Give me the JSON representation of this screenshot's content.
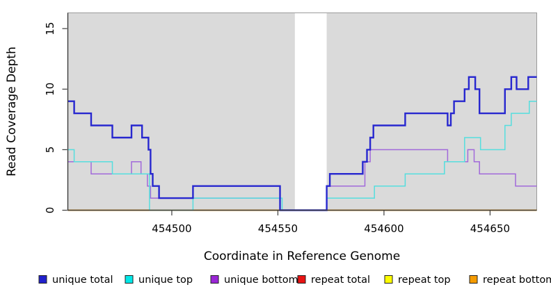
{
  "chart_data": {
    "type": "line",
    "subtype": "step-after-coverage",
    "title": "",
    "xlabel": "Coordinate in Reference Genome",
    "ylabel": "Read Coverage Depth",
    "xlim": [
      454451,
      454672
    ],
    "ylim": [
      0,
      16.3
    ],
    "x_ticks": [
      454500,
      454550,
      454600,
      454650
    ],
    "y_ticks": [
      0,
      5,
      10,
      15
    ],
    "grid": false,
    "legend_position": "bottom",
    "panel_bg": "#dadada",
    "masked_region": {
      "x_start": 454558,
      "x_end": 454573,
      "color": "#ffffff"
    },
    "series": [
      {
        "name": "repeat total",
        "color": "#e81313",
        "width": 1.6,
        "steps": [
          [
            454451,
            0
          ],
          [
            454551,
            null
          ],
          [
            454573,
            0
          ]
        ]
      },
      {
        "name": "repeat top",
        "color": "#f5f500",
        "width": 1.6,
        "steps": [
          [
            454451,
            0
          ],
          [
            454551,
            null
          ],
          [
            454573,
            0
          ]
        ]
      },
      {
        "name": "repeat bottom",
        "color": "#ff9d00",
        "width": 2,
        "steps": [
          [
            454451,
            0
          ],
          [
            454551,
            null
          ],
          [
            454573,
            0
          ]
        ]
      },
      {
        "name": "unique bottom",
        "color": "#a169da",
        "width": 1.5,
        "steps": [
          [
            454451,
            4
          ],
          [
            454462,
            3
          ],
          [
            454481,
            4
          ],
          [
            454485.5,
            3
          ],
          [
            454488.5,
            2
          ],
          [
            454490,
            1
          ],
          [
            454551,
            0
          ],
          [
            454573,
            2
          ],
          [
            454591,
            4
          ],
          [
            454593.5,
            5
          ],
          [
            454630,
            4
          ],
          [
            454639.5,
            5
          ],
          [
            454642.5,
            4
          ],
          [
            454645,
            3
          ],
          [
            454662,
            2
          ]
        ]
      },
      {
        "name": "unique top",
        "color": "#55dede",
        "width": 1.5,
        "steps": [
          [
            454451,
            5
          ],
          [
            454454,
            4
          ],
          [
            454472,
            3
          ],
          [
            454489.5,
            0
          ],
          [
            454510,
            1
          ],
          [
            454552,
            0
          ],
          [
            454573,
            1
          ],
          [
            454595.5,
            2
          ],
          [
            454610,
            3
          ],
          [
            454628.5,
            4
          ],
          [
            454638,
            6
          ],
          [
            454645.5,
            5
          ],
          [
            454657,
            7
          ],
          [
            454660,
            8
          ],
          [
            454668.5,
            9
          ]
        ]
      },
      {
        "name": "unique total",
        "color": "#2727cf",
        "width": 2.4,
        "steps": [
          [
            454451,
            9
          ],
          [
            454454,
            8
          ],
          [
            454462,
            7
          ],
          [
            454472,
            6
          ],
          [
            454481,
            7
          ],
          [
            454486,
            6
          ],
          [
            454489,
            5
          ],
          [
            454490,
            3
          ],
          [
            454491,
            2
          ],
          [
            454494,
            1
          ],
          [
            454510,
            2
          ],
          [
            454551,
            0
          ],
          [
            454573,
            2
          ],
          [
            454574.5,
            3
          ],
          [
            454590,
            4
          ],
          [
            454592,
            5
          ],
          [
            454593.5,
            6
          ],
          [
            454595,
            7
          ],
          [
            454610,
            8
          ],
          [
            454630,
            7
          ],
          [
            454631.5,
            8
          ],
          [
            454633,
            9
          ],
          [
            454638,
            10
          ],
          [
            454640,
            11
          ],
          [
            454643,
            10
          ],
          [
            454645,
            8
          ],
          [
            454657,
            10
          ],
          [
            454660,
            11
          ],
          [
            454662.5,
            10
          ],
          [
            454668,
            11
          ]
        ]
      }
    ]
  },
  "legend": {
    "items": [
      {
        "label": "unique total",
        "color": "#2121cc"
      },
      {
        "label": "unique top",
        "color": "#00e8e8"
      },
      {
        "label": "unique bottom",
        "color": "#9a26d6"
      },
      {
        "label": "repeat total",
        "color": "#e81313"
      },
      {
        "label": "repeat top",
        "color": "#fdfd00"
      },
      {
        "label": "repeat bottom",
        "color": "#f59b00"
      }
    ]
  }
}
